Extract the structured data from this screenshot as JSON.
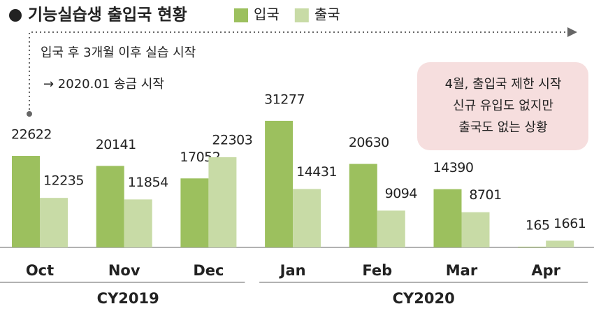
{
  "chart_data": {
    "type": "bar",
    "title": "기능실습생 출입국 현황",
    "categories": [
      "Oct",
      "Nov",
      "Dec",
      "Jan",
      "Feb",
      "Mar",
      "Apr"
    ],
    "groups": [
      {
        "label": "CY2019",
        "span": [
          0,
          2
        ]
      },
      {
        "label": "CY2020",
        "span": [
          3,
          6
        ]
      }
    ],
    "series": [
      {
        "name": "입국",
        "color": "#9cc05e",
        "values": [
          22622,
          20141,
          17052,
          31277,
          20630,
          14390,
          165
        ]
      },
      {
        "name": "출국",
        "color": "#c8dba6",
        "values": [
          12235,
          11854,
          22303,
          14431,
          9094,
          8701,
          1661
        ]
      }
    ],
    "annotations": [
      "입국 후 3개월 이후 실습 시작",
      "→ 2020.01 송금 시작"
    ],
    "callout": [
      "4월, 출입국 제한 시작",
      "신규 유입도 없지만",
      "출국도 없는 상황"
    ]
  }
}
